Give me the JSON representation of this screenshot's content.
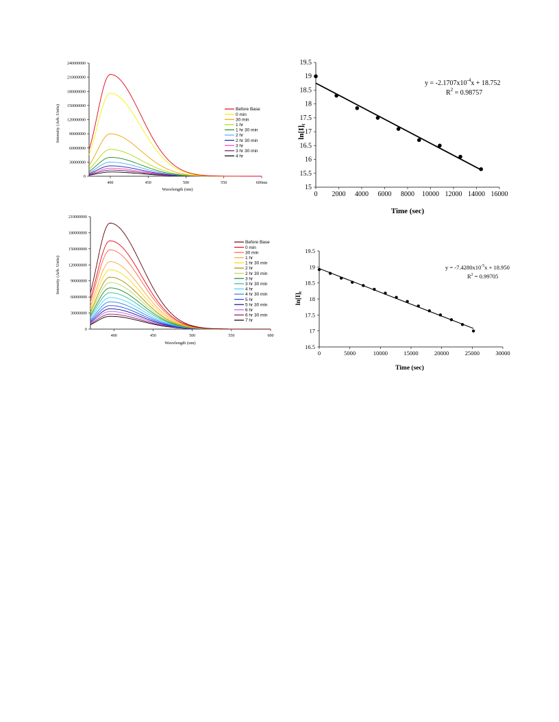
{
  "chart_data": [
    {
      "type": "line",
      "xlabel": "Wavelength (nm)",
      "ylabel": "Intensity (Arb. Units)",
      "xlim": [
        372,
        600
      ],
      "ylim": [
        0,
        240000000
      ],
      "x_ticks": [
        "400",
        "450",
        "500",
        "550",
        "600nm"
      ],
      "y_ticks": [
        "0",
        "30000000",
        "60000000",
        "90000000",
        "120000000",
        "150000000",
        "180000000",
        "210000000",
        "240000000"
      ],
      "legend": "right",
      "peak_x": 400,
      "series": [
        {
          "name": "Before Base",
          "color": "#e0001b",
          "peak": 216000000
        },
        {
          "name": "0 min",
          "color": "#f2f200",
          "peak": 176000000
        },
        {
          "name": "30 min",
          "color": "#f0a000",
          "peak": 90000000
        },
        {
          "name": "1 hr",
          "color": "#a8e000",
          "peak": 57000000
        },
        {
          "name": "1 hr 30 min",
          "color": "#1a8a1a",
          "peak": 40000000
        },
        {
          "name": "2 hr",
          "color": "#48a8ff",
          "peak": 30000000
        },
        {
          "name": "2 hr 30 min",
          "color": "#1a1ab0",
          "peak": 22000000
        },
        {
          "name": "3 hr",
          "color": "#ff40c0",
          "peak": 17000000
        },
        {
          "name": "3 hr 30 min",
          "color": "#6a1870",
          "peak": 13000000
        },
        {
          "name": "4 hr",
          "color": "#000000",
          "peak": 9000000
        }
      ]
    },
    {
      "type": "scatter",
      "xlabel": "Time (sec)",
      "ylabel": "ln[I]t",
      "xlim": [
        0,
        16000
      ],
      "ylim": [
        15,
        19.5
      ],
      "x_ticks": [
        "0",
        "2000",
        "4000",
        "6000",
        "8000",
        "10000",
        "12000",
        "14000",
        "16000"
      ],
      "y_ticks": [
        "15",
        "15.5",
        "16",
        "16.5",
        "17",
        "17.5",
        "18",
        "18.5",
        "19",
        "19.5"
      ],
      "equation_prefix": "y = -2.1707x10",
      "equation_exponent": "-4",
      "equation_suffix": "x + 18.752",
      "r2_prefix": "R",
      "r2_exponent": "2",
      "r2_suffix": " = 0.98757",
      "fit": {
        "slope": -0.00021707,
        "intercept": 18.752,
        "x_range": [
          0,
          14400
        ]
      },
      "points": [
        {
          "x": 0,
          "y": 19.0
        },
        {
          "x": 1800,
          "y": 18.3
        },
        {
          "x": 3600,
          "y": 17.85
        },
        {
          "x": 5400,
          "y": 17.5
        },
        {
          "x": 7200,
          "y": 17.1
        },
        {
          "x": 9000,
          "y": 16.7
        },
        {
          "x": 10800,
          "y": 16.5
        },
        {
          "x": 12600,
          "y": 16.1
        },
        {
          "x": 14400,
          "y": 15.65
        }
      ]
    },
    {
      "type": "line",
      "xlabel": "Wavelength (nm)",
      "ylabel": "Intensity (Arb. Units)",
      "xlim": [
        370,
        600
      ],
      "ylim": [
        0,
        210000000
      ],
      "x_ticks": [
        "400",
        "450",
        "500",
        "550",
        "600"
      ],
      "y_ticks": [
        "0",
        "30000000",
        "60000000",
        "90000000",
        "120000000",
        "150000000",
        "180000000",
        "210000000"
      ],
      "legend": "right",
      "peak_x": 395,
      "series": [
        {
          "name": "Before Base",
          "color": "#5a0000",
          "peak": 198000000
        },
        {
          "name": "0 min",
          "color": "#e8001c",
          "peak": 165000000
        },
        {
          "name": "30 min",
          "color": "#ff6633",
          "peak": 148000000
        },
        {
          "name": "1 hr",
          "color": "#ffa040",
          "peak": 126000000
        },
        {
          "name": "1 hr 30 min",
          "color": "#f5e000",
          "peak": 111000000
        },
        {
          "name": "2 hr",
          "color": "#b08000",
          "peak": 97000000
        },
        {
          "name": "2 hr 30 min",
          "color": "#a8e050",
          "peak": 87000000
        },
        {
          "name": "3 hr",
          "color": "#208020",
          "peak": 77000000
        },
        {
          "name": "3 hr 30 min",
          "color": "#20c0a0",
          "peak": 68000000
        },
        {
          "name": "4 hr",
          "color": "#40d0ff",
          "peak": 59000000
        },
        {
          "name": "4 hr 30 min",
          "color": "#2080e0",
          "peak": 51000000
        },
        {
          "name": "5 hr",
          "color": "#2040ff",
          "peak": 44000000
        },
        {
          "name": "5 hr 30 min",
          "color": "#101080",
          "peak": 38000000
        },
        {
          "name": "6 hr",
          "color": "#b060ff",
          "peak": 33000000
        },
        {
          "name": "6 hr 30 min",
          "color": "#a01050",
          "peak": 28000000
        },
        {
          "name": "7 hr",
          "color": "#000000",
          "peak": 24000000
        }
      ]
    },
    {
      "type": "scatter",
      "xlabel": "Time (sec)",
      "ylabel": "ln[I]t",
      "xlim": [
        0,
        30000
      ],
      "ylim": [
        16.5,
        19.5
      ],
      "x_ticks": [
        "0",
        "5000",
        "10000",
        "15000",
        "20000",
        "25000",
        "30000"
      ],
      "y_ticks": [
        "16.5",
        "17",
        "17.5",
        "18",
        "18.5",
        "19",
        "19.5"
      ],
      "equation_prefix": "y = -7.4280x10",
      "equation_exponent": "-5",
      "equation_suffix": "x + 18.950",
      "r2_prefix": "R",
      "r2_exponent": "2",
      "r2_suffix": " = 0.99705",
      "fit": {
        "slope": -7.428e-05,
        "intercept": 18.95,
        "x_range": [
          0,
          25200
        ]
      },
      "points": [
        {
          "x": 0,
          "y": 18.92
        },
        {
          "x": 1800,
          "y": 18.8
        },
        {
          "x": 3600,
          "y": 18.65
        },
        {
          "x": 5400,
          "y": 18.52
        },
        {
          "x": 7200,
          "y": 18.42
        },
        {
          "x": 9000,
          "y": 18.3
        },
        {
          "x": 10800,
          "y": 18.18
        },
        {
          "x": 12600,
          "y": 18.05
        },
        {
          "x": 14400,
          "y": 17.92
        },
        {
          "x": 16200,
          "y": 17.78
        },
        {
          "x": 18000,
          "y": 17.63
        },
        {
          "x": 19800,
          "y": 17.5
        },
        {
          "x": 21600,
          "y": 17.35
        },
        {
          "x": 23400,
          "y": 17.2
        },
        {
          "x": 25200,
          "y": 17.0
        }
      ]
    }
  ]
}
